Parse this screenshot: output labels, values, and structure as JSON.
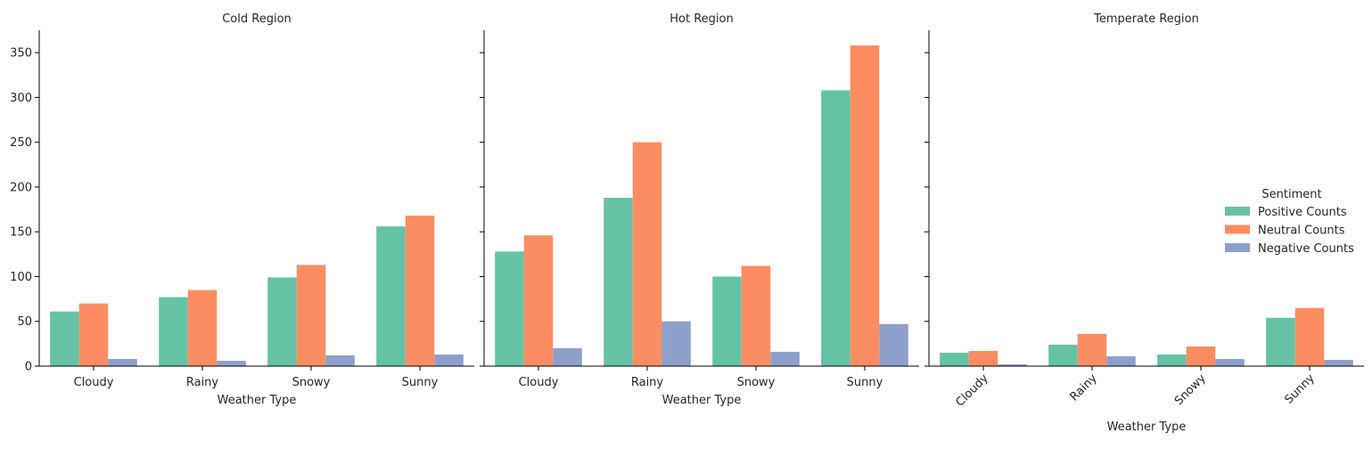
{
  "chart_data": {
    "type": "bar",
    "categories": [
      "Cloudy",
      "Rainy",
      "Snowy",
      "Sunny"
    ],
    "xlabel": "Weather Type",
    "ylabel": "",
    "ylim": [
      0,
      375
    ],
    "yticks": [
      0,
      50,
      100,
      150,
      200,
      250,
      300,
      350
    ],
    "legend": {
      "title": "Sentiment",
      "placement": "right",
      "entries": [
        "Positive Counts",
        "Neutral Counts",
        "Negative Counts"
      ]
    },
    "colors": [
      "#66c2a5",
      "#fc8d62",
      "#8da0cb"
    ],
    "panels": [
      {
        "title": "Cold Region",
        "series": [
          {
            "name": "Positive Counts",
            "values": [
              61,
              77,
              99,
              156
            ]
          },
          {
            "name": "Neutral Counts",
            "values": [
              70,
              85,
              113,
              168
            ]
          },
          {
            "name": "Negative Counts",
            "values": [
              8,
              6,
              12,
              13
            ]
          }
        ]
      },
      {
        "title": "Hot Region",
        "series": [
          {
            "name": "Positive Counts",
            "values": [
              128,
              188,
              100,
              308
            ]
          },
          {
            "name": "Neutral Counts",
            "values": [
              146,
              250,
              112,
              358
            ]
          },
          {
            "name": "Negative Counts",
            "values": [
              20,
              50,
              16,
              47
            ]
          }
        ]
      },
      {
        "title": "Temperate Region",
        "rotate_xticks": true,
        "series": [
          {
            "name": "Positive Counts",
            "values": [
              15,
              24,
              13,
              54
            ]
          },
          {
            "name": "Neutral Counts",
            "values": [
              17,
              36,
              22,
              65
            ]
          },
          {
            "name": "Negative Counts",
            "values": [
              2,
              11,
              8,
              7
            ]
          }
        ]
      }
    ]
  }
}
